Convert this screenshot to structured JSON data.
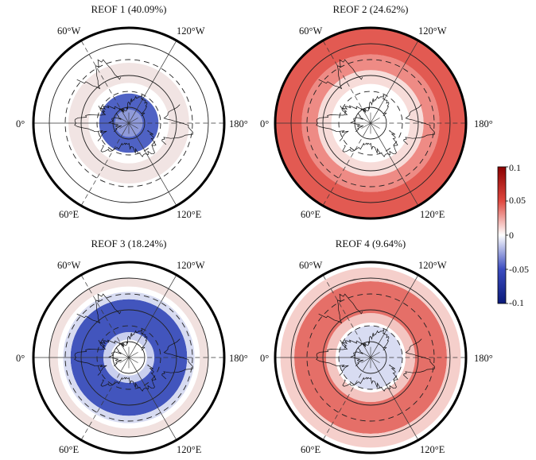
{
  "figure": {
    "panels": [
      {
        "title": "REOF 1 (40.09%)",
        "lon_labels": {
          "top_left": "60°W",
          "top_right": "120°W",
          "left": "0°",
          "right": "180°",
          "bottom_left": "60°E",
          "bottom_right": "120°E"
        },
        "field_rings": [
          {
            "lat_from": 90,
            "lat_to": 77,
            "value": -0.05,
            "color": "#8f9ad9"
          },
          {
            "lat_from": 77,
            "lat_to": 62,
            "value": -0.06,
            "color": "#4f62c4"
          },
          {
            "lat_from": 52,
            "lat_to": 33,
            "value": 0.005,
            "color": "#f1e4e3"
          }
        ]
      },
      {
        "title": "REOF 2 (24.62%)",
        "lon_labels": {
          "top_left": "60°W",
          "top_right": "120°W",
          "left": "0°",
          "right": "180°",
          "bottom_left": "60°E",
          "bottom_right": "120°E"
        },
        "field_rings": [
          {
            "lat_from": 53,
            "lat_to": 40,
            "value": 0.015,
            "color": "#f7dcd9"
          },
          {
            "lat_from": 40,
            "lat_to": 25,
            "value": 0.04,
            "color": "#ee8b85"
          },
          {
            "lat_from": 25,
            "lat_to": 0,
            "value": 0.06,
            "color": "#e25a52"
          }
        ]
      },
      {
        "title": "REOF 3 (18.24%)",
        "lon_labels": {
          "top_left": "60°W",
          "top_right": "120°W",
          "left": "0°",
          "right": "180°",
          "bottom_left": "60°E",
          "bottom_right": "120°E"
        },
        "field_rings": [
          {
            "lat_from": 73,
            "lat_to": 66,
            "value": -0.02,
            "color": "#c9cfee"
          },
          {
            "lat_from": 66,
            "lat_to": 35,
            "value": -0.07,
            "color": "#4255bd"
          },
          {
            "lat_from": 35,
            "lat_to": 28,
            "value": -0.015,
            "color": "#d7dbf1"
          },
          {
            "lat_from": 23,
            "lat_to": 15,
            "value": 0.005,
            "color": "#f1e1df"
          }
        ]
      },
      {
        "title": "REOF 4 (9.64%)",
        "lon_labels": {
          "top_left": "60°W",
          "top_right": "120°W",
          "left": "0°",
          "right": "180°",
          "bottom_left": "60°E",
          "bottom_right": "120°E"
        },
        "field_rings": [
          {
            "lat_from": 90,
            "lat_to": 60,
            "value": -0.015,
            "color": "#d8dcf2"
          },
          {
            "lat_from": 57,
            "lat_to": 48,
            "value": 0.02,
            "color": "#f3c5c1"
          },
          {
            "lat_from": 48,
            "lat_to": 18,
            "value": 0.05,
            "color": "#e56f68"
          },
          {
            "lat_from": 18,
            "lat_to": 5,
            "value": 0.02,
            "color": "#f5cfcb"
          }
        ]
      }
    ],
    "colorbar": {
      "ticks": [
        "0.1",
        "0.05",
        "0",
        "-0.05",
        "-0.1"
      ],
      "tick_values": [
        0.1,
        0.05,
        0,
        -0.05,
        -0.1
      ],
      "range": [
        -0.1,
        0.1
      ],
      "colors": {
        "max": "#8b0000",
        "high": "#e0483f",
        "mid": "#ffffff",
        "low": "#3b4cc0",
        "min": "#0a1a7a"
      }
    }
  }
}
